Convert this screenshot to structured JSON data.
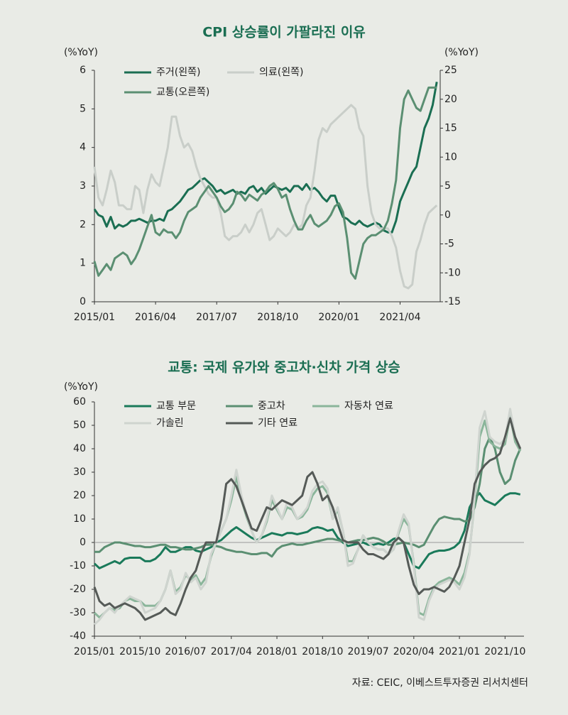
{
  "chart_data": [
    {
      "type": "line",
      "title": "CPI 상승률이 가팔라진 이유",
      "y_label": "(%YoY)",
      "y2_label": "(%YoY)",
      "categories": [
        "2015/01",
        null,
        null,
        null,
        null,
        null,
        null,
        null,
        null,
        null,
        null,
        null,
        null,
        null,
        null,
        "2016/04",
        null,
        null,
        null,
        null,
        null,
        null,
        null,
        null,
        null,
        null,
        null,
        null,
        null,
        null,
        "2017/07",
        null,
        null,
        null,
        null,
        null,
        null,
        null,
        null,
        null,
        null,
        null,
        null,
        null,
        null,
        "2018/10",
        null,
        null,
        null,
        null,
        null,
        null,
        null,
        null,
        null,
        null,
        null,
        null,
        null,
        null,
        "2020/01",
        null,
        null,
        null,
        null,
        null,
        null,
        null,
        null,
        null,
        null,
        null,
        null,
        null,
        null,
        "2021/04",
        null,
        null,
        null,
        null,
        null,
        null,
        null,
        null,
        null
      ],
      "ylim": [
        0,
        6
      ],
      "yticks": [
        0,
        1,
        2,
        3,
        4,
        5,
        6
      ],
      "y2lim": [
        -15,
        25
      ],
      "y2ticks": [
        -15,
        -10,
        -5,
        0,
        5,
        10,
        15,
        20,
        25
      ],
      "series": [
        {
          "name": "주거(왼쪽)",
          "color": "#1a6e52",
          "values": [
            2.4,
            2.25,
            2.2,
            1.95,
            2.2,
            1.9,
            2.0,
            1.95,
            2.0,
            2.1,
            2.1,
            2.15,
            2.1,
            2.05,
            2.1,
            2.1,
            2.15,
            2.1,
            2.35,
            2.4,
            2.5,
            2.6,
            2.75,
            2.9,
            2.95,
            3.05,
            3.15,
            3.2,
            3.1,
            3.0,
            2.85,
            2.9,
            2.8,
            2.85,
            2.9,
            2.8,
            2.85,
            2.8,
            2.95,
            3.0,
            2.85,
            2.95,
            2.8,
            2.9,
            3.0,
            2.95,
            2.9,
            2.95,
            2.85,
            3.0,
            3.0,
            2.9,
            3.05,
            2.9,
            2.95,
            2.85,
            2.7,
            2.6,
            2.75,
            2.75,
            2.45,
            2.2,
            2.15,
            2.05,
            2.0,
            2.1,
            2.0,
            1.95,
            2.0,
            2.05,
            2.0,
            1.85,
            1.8,
            1.8,
            2.1,
            2.6,
            2.85,
            3.1,
            3.35,
            3.5,
            4.0,
            4.5,
            4.75,
            5.1,
            5.7
          ]
        },
        {
          "name": "의료(왼쪽)",
          "color": "#c9cec9",
          "values": [
            3.5,
            2.7,
            2.5,
            2.9,
            3.4,
            3.1,
            2.5,
            2.5,
            2.4,
            2.4,
            3.0,
            2.9,
            2.3,
            2.9,
            3.3,
            3.1,
            3.0,
            3.5,
            4.0,
            4.8,
            4.8,
            4.3,
            4.0,
            4.1,
            3.9,
            3.5,
            3.2,
            3.0,
            2.8,
            2.7,
            2.7,
            2.3,
            1.7,
            1.6,
            1.7,
            1.7,
            1.8,
            2.0,
            1.8,
            2.0,
            2.3,
            2.4,
            2.0,
            1.6,
            1.7,
            1.9,
            1.8,
            1.7,
            1.8,
            2.0,
            1.9,
            2.0,
            2.5,
            2.7,
            3.4,
            4.2,
            4.5,
            4.4,
            4.6,
            4.7,
            4.8,
            4.9,
            5.0,
            5.1,
            5.0,
            4.5,
            4.3,
            3.0,
            2.3,
            2.0,
            1.9,
            1.9,
            1.9,
            1.7,
            1.4,
            0.8,
            0.4,
            0.35,
            0.45,
            1.3,
            1.6,
            2.0,
            2.3,
            2.4,
            2.5
          ]
        },
        {
          "name": "교통(오른쪽)",
          "color": "#5b8f72",
          "axis": "y2",
          "values": [
            -8,
            -10.5,
            -9.5,
            -8.5,
            -9.5,
            -7.5,
            -7,
            -6.5,
            -7,
            -8.5,
            -7.5,
            -6,
            -4,
            -2,
            0,
            -3,
            -3.5,
            -2.5,
            -3,
            -3,
            -4,
            -3,
            -1,
            0.5,
            1,
            1.5,
            3,
            4,
            5,
            4,
            3,
            1.5,
            0.5,
            1,
            2,
            4,
            3.5,
            2.5,
            3.5,
            3,
            2.5,
            3.5,
            4,
            5,
            5.5,
            4.5,
            3,
            3.5,
            1,
            -1,
            -2.5,
            -2.5,
            -1,
            0,
            -1.5,
            -2,
            -1.5,
            -1,
            0,
            1.5,
            2,
            0.5,
            -4,
            -10,
            -11,
            -8,
            -5,
            -4,
            -3.5,
            -3.5,
            -3,
            -2.5,
            -1,
            2,
            6,
            15,
            20,
            21.5,
            20,
            18.5,
            18,
            20,
            22,
            22,
            22
          ]
        }
      ]
    },
    {
      "type": "line",
      "title": "교통: 국제 유가와 중고차·신차 가격 상승",
      "y_label": "(%YoY)",
      "categories": [
        "2015/01",
        null,
        null,
        null,
        null,
        null,
        null,
        null,
        null,
        "2015/10",
        null,
        null,
        null,
        null,
        null,
        null,
        null,
        null,
        "2016/07",
        null,
        null,
        null,
        null,
        null,
        null,
        null,
        null,
        "2017/04",
        null,
        null,
        null,
        null,
        null,
        null,
        null,
        null,
        "2018/01",
        null,
        null,
        null,
        null,
        null,
        null,
        null,
        null,
        "2018/10",
        null,
        null,
        null,
        null,
        null,
        null,
        null,
        null,
        "2019/07",
        null,
        null,
        null,
        null,
        null,
        null,
        null,
        null,
        "2020/04",
        null,
        null,
        null,
        null,
        null,
        null,
        null,
        null,
        "2021/01",
        null,
        null,
        null,
        null,
        null,
        null,
        null,
        null,
        "2021/10",
        null,
        null,
        null
      ],
      "ylim": [
        -40,
        60
      ],
      "yticks": [
        -40,
        -30,
        -20,
        -10,
        0,
        10,
        20,
        30,
        40,
        50,
        60
      ],
      "series": [
        {
          "name": "교통 부문",
          "color": "#1a7a5a",
          "values": [
            -9,
            -11,
            -10,
            -9,
            -8,
            -9,
            -7,
            -6.5,
            -6.5,
            -6.5,
            -8,
            -8,
            -7,
            -5,
            -2,
            -4,
            -4,
            -3,
            -2,
            -2,
            -3.5,
            -4,
            -3,
            -2,
            0,
            1,
            3,
            5,
            6.5,
            5,
            3.5,
            2,
            1,
            2,
            3,
            4,
            3.5,
            3,
            4,
            4,
            3.5,
            4,
            4.5,
            6,
            6.5,
            6,
            5,
            5.5,
            2,
            0,
            -1.5,
            -1,
            -0.5,
            0,
            -1,
            -1,
            -0.5,
            -1,
            0,
            1.5,
            2,
            0,
            -5,
            -10,
            -11,
            -8,
            -5,
            -4,
            -3.5,
            -3.5,
            -3,
            -2,
            0,
            5,
            15,
            19,
            21,
            18,
            17,
            16,
            18,
            20,
            21,
            21,
            20.5
          ]
        },
        {
          "name": "중고차",
          "color": "#5b8f72",
          "values": [
            -4,
            -4,
            -2,
            -1,
            0,
            0,
            -0.5,
            -1,
            -1.5,
            -1.5,
            -2,
            -2,
            -1.5,
            -1,
            -1,
            -2,
            -2,
            -2.5,
            -3,
            -3,
            -2.5,
            -2,
            -1,
            -1,
            -1.5,
            -2,
            -3,
            -3.5,
            -4,
            -4,
            -4.5,
            -5,
            -5,
            -4.5,
            -4.5,
            -6,
            -3,
            -1.5,
            -1,
            -0.5,
            -1,
            -1,
            -0.5,
            0,
            0.5,
            1,
            1.5,
            1.5,
            1,
            0.5,
            0,
            0.5,
            1,
            1,
            1.5,
            2,
            1.5,
            0.5,
            -1,
            -1,
            -0.5,
            0,
            -0.5,
            -1,
            -2,
            -1,
            3,
            7,
            10,
            11,
            10.5,
            10,
            10,
            9,
            9.5,
            15,
            25,
            40,
            45,
            40,
            30,
            25,
            27,
            35,
            40
          ]
        },
        {
          "name": "자동차 연료",
          "color": "#8ab59a",
          "values": [
            -30,
            -32,
            -30,
            -28,
            -29,
            -28,
            -25,
            -24,
            -25,
            -25,
            -27,
            -27,
            -27,
            -25,
            -20,
            -12,
            -21,
            -19,
            -14,
            -16,
            -14,
            -18,
            -15,
            -6,
            0,
            5,
            10,
            18,
            28,
            18,
            11,
            5,
            0,
            3,
            9,
            18,
            14,
            10,
            15,
            14,
            10,
            11,
            14,
            20,
            23,
            24,
            21,
            10,
            14,
            5,
            -8,
            -8,
            -3,
            3,
            0,
            -2,
            -3,
            -3,
            -5,
            -3,
            4,
            10,
            7,
            -9,
            -30,
            -31,
            -24,
            -19,
            -17,
            -16,
            -15,
            -16,
            -18,
            -13,
            -4,
            18,
            45,
            52,
            43,
            41,
            40,
            42,
            54,
            43,
            39
          ]
        },
        {
          "name": "가솔린",
          "color": "#cfd4cf",
          "values": [
            -35,
            -33,
            -30,
            -28,
            -30,
            -27,
            -25,
            -23,
            -24,
            -25,
            -30,
            -29,
            -28,
            -25,
            -20,
            -12,
            -22,
            -20,
            -13,
            -17,
            -15,
            -20,
            -17,
            -5,
            0,
            5,
            10,
            20,
            31,
            20,
            12,
            5,
            0,
            3,
            10,
            20,
            15,
            10,
            17,
            15,
            10,
            12,
            15,
            22,
            25,
            26,
            23,
            10,
            15,
            5,
            -10,
            -9,
            -3,
            3,
            0,
            -2,
            -3,
            -3,
            -5,
            -3,
            5,
            12,
            8,
            -10,
            -32,
            -33,
            -25,
            -20,
            -18,
            -17,
            -16,
            -17,
            -20,
            -15,
            -5,
            20,
            49,
            56,
            45,
            43,
            42,
            44,
            57,
            45,
            40
          ]
        },
        {
          "name": "기타 연료",
          "color": "#555a57",
          "values": [
            -19,
            -25,
            -27,
            -26,
            -28,
            -27,
            -26,
            -27,
            -28,
            -30,
            -33,
            -32,
            -31,
            -30,
            -28,
            -30,
            -31,
            -26,
            -20,
            -15,
            -12,
            -5,
            0,
            0,
            0,
            10,
            25,
            27,
            24,
            18,
            12,
            6,
            5,
            10,
            15,
            14,
            16,
            18,
            17,
            16,
            18,
            20,
            28,
            30,
            25,
            18,
            20,
            15,
            8,
            1,
            0,
            0,
            0,
            -3,
            -5,
            -5,
            -6,
            -7,
            -5,
            0,
            2,
            0,
            -10,
            -18,
            -22,
            -20,
            -20,
            -19,
            -20,
            -21,
            -19,
            -15,
            -10,
            0,
            10,
            25,
            30,
            33,
            35,
            36,
            38,
            45,
            53,
            45,
            40
          ]
        }
      ]
    }
  ],
  "source": "자료: CEIC, 이베스트투자증권 리서치센터"
}
